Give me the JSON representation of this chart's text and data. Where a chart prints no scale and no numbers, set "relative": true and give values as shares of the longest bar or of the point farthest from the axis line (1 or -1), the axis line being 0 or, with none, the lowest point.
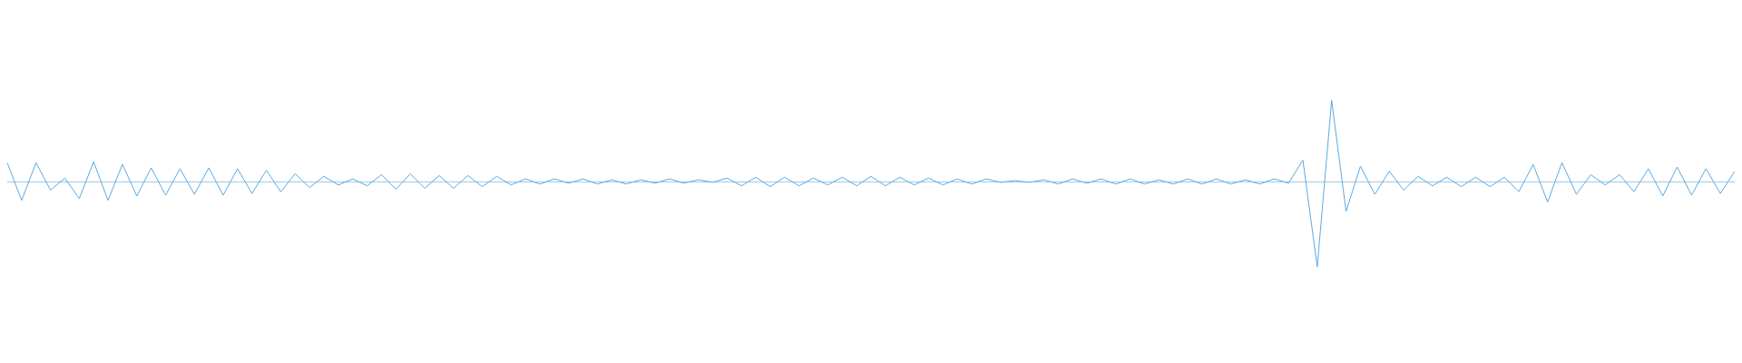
{
  "chart_data": {
    "type": "line",
    "relative": true,
    "ref_lines": [
      {
        "axis": "y",
        "value": 0,
        "color": "#5aaae0"
      }
    ],
    "grid": false,
    "marker": "none",
    "tick_labels": false,
    "categories": [
      null,
      null,
      null,
      null,
      null,
      null,
      null,
      null,
      null,
      null,
      null,
      null,
      null,
      null,
      null,
      null,
      null,
      null,
      null,
      null,
      null,
      null,
      null,
      null,
      null,
      null,
      null,
      null,
      null,
      null,
      null,
      null,
      null,
      null,
      null,
      null,
      null,
      null,
      null,
      null,
      null,
      null,
      null,
      null,
      null,
      null,
      null,
      null,
      null,
      null,
      null,
      null,
      null,
      null,
      null,
      null,
      null,
      null,
      null,
      null,
      null,
      null,
      null,
      null,
      null,
      null,
      null,
      null,
      null,
      null,
      null,
      null,
      null,
      null,
      null,
      null,
      null,
      null,
      null,
      null,
      null,
      null,
      null,
      null,
      null,
      null,
      null,
      null,
      null,
      null,
      null,
      null,
      null,
      null,
      null,
      null,
      null,
      null,
      null,
      null,
      null,
      null,
      null,
      null,
      null,
      null,
      null,
      null,
      null,
      null,
      null,
      null,
      null,
      null,
      null,
      null,
      null,
      null,
      null,
      null,
      null
    ],
    "series": [
      {
        "color": "#5aaae0",
        "values": [
          0.22,
          -0.22,
          0.22,
          -0.1,
          0.04,
          -0.2,
          0.23,
          -0.22,
          0.2,
          -0.17,
          0.16,
          -0.16,
          0.15,
          -0.15,
          0.16,
          -0.16,
          0.15,
          -0.14,
          0.13,
          -0.12,
          0.09,
          -0.07,
          0.06,
          -0.04,
          0.03,
          -0.05,
          0.08,
          -0.09,
          0.09,
          -0.08,
          0.07,
          -0.08,
          0.07,
          -0.06,
          0.06,
          -0.04,
          0.03,
          -0.03,
          0.03,
          -0.02,
          0.03,
          -0.03,
          0.02,
          -0.03,
          0.02,
          -0.02,
          0.03,
          -0.02,
          0.02,
          -0.01,
          0.04,
          -0.05,
          0.05,
          -0.06,
          0.05,
          -0.05,
          0.04,
          -0.04,
          0.05,
          -0.05,
          0.06,
          -0.05,
          0.05,
          -0.04,
          0.04,
          -0.04,
          0.03,
          -0.03,
          0.03,
          -0.01,
          0.01,
          -0.01,
          0.02,
          -0.03,
          0.03,
          -0.02,
          0.03,
          -0.03,
          0.03,
          -0.03,
          0.02,
          -0.03,
          0.03,
          -0.03,
          0.03,
          -0.03,
          0.02,
          -0.03,
          0.03,
          -0.02,
          0.25,
          -1,
          0.95,
          -0.35,
          0.18,
          -0.15,
          0.12,
          -0.1,
          0.06,
          -0.05,
          0.05,
          -0.06,
          0.05,
          -0.06,
          0.05,
          -0.12,
          0.2,
          -0.24,
          0.22,
          -0.15,
          0.08,
          -0.04,
          0.08,
          -0.12,
          0.15,
          -0.17,
          0.17,
          -0.16,
          0.15,
          -0.14,
          0.12
        ]
      }
    ]
  }
}
